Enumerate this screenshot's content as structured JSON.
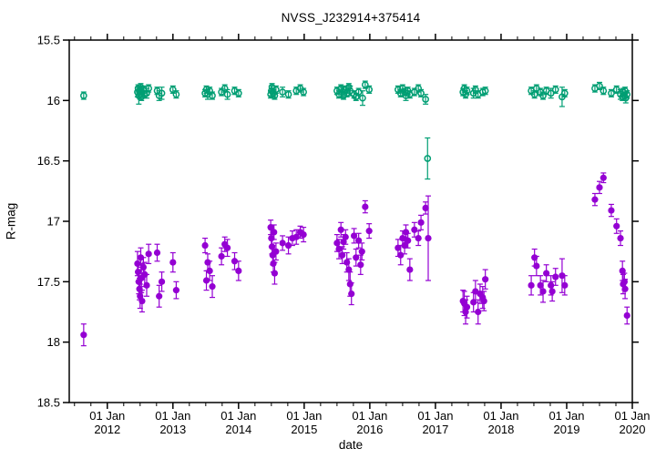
{
  "page": {
    "background": "#ffffff",
    "foreground": "#000000"
  },
  "chart_data": {
    "type": "scatter",
    "title": "NVSS_J232914+375414",
    "xlabel": "date",
    "ylabel": "R-mag",
    "grid": false,
    "legend": "none",
    "tick_style": "outward-mirrored",
    "y_axis": {
      "inverted_magnitude_scale": true,
      "ticks": [
        {
          "value": 15.5,
          "label": "15.5"
        },
        {
          "value": 16.0,
          "label": "16"
        },
        {
          "value": 16.5,
          "label": "16.5"
        },
        {
          "value": 17.0,
          "label": "17"
        },
        {
          "value": 17.5,
          "label": "17.5"
        },
        {
          "value": 18.0,
          "label": "18"
        },
        {
          "value": 18.5,
          "label": "18.5"
        }
      ]
    },
    "x_axis": {
      "min_year": 2011.42,
      "max_year": 2020.0,
      "minor_step_years": 0.25,
      "major_ticks": [
        {
          "year": 2012,
          "label": [
            "01 Jan",
            "2012"
          ]
        },
        {
          "year": 2013,
          "label": [
            "01 Jan",
            "2013"
          ]
        },
        {
          "year": 2014,
          "label": [
            "01 Jan",
            "2014"
          ]
        },
        {
          "year": 2015,
          "label": [
            "01 Jan",
            "2015"
          ]
        },
        {
          "year": 2016,
          "label": [
            "01 Jan",
            "2016"
          ]
        },
        {
          "year": 2017,
          "label": [
            "01 Jan",
            "2017"
          ]
        },
        {
          "year": 2018,
          "label": [
            "01 Jan",
            "2018"
          ]
        },
        {
          "year": 2019,
          "label": [
            "01 Jan",
            "2019"
          ]
        },
        {
          "year": 2020,
          "label": [
            "01 Jan",
            "2020"
          ]
        }
      ]
    },
    "series": [
      {
        "name": "target",
        "marker": "filled-circle",
        "color": "#9400d3",
        "points": [
          [
            2011.64,
            17.94,
            0.09
          ],
          [
            2012.46,
            17.35,
            0.1
          ],
          [
            2012.47,
            17.42,
            0.08
          ],
          [
            2012.48,
            17.5,
            0.1
          ],
          [
            2012.49,
            17.56,
            0.09
          ],
          [
            2012.5,
            17.62,
            0.1
          ],
          [
            2012.51,
            17.3,
            0.08
          ],
          [
            2012.52,
            17.47,
            0.12
          ],
          [
            2012.53,
            17.66,
            0.09
          ],
          [
            2012.55,
            17.38,
            0.08
          ],
          [
            2012.57,
            17.44,
            0.1
          ],
          [
            2012.6,
            17.53,
            0.09
          ],
          [
            2012.63,
            17.27,
            0.08
          ],
          [
            2012.76,
            17.26,
            0.07
          ],
          [
            2012.79,
            17.62,
            0.09
          ],
          [
            2012.83,
            17.5,
            0.08
          ],
          [
            2013.0,
            17.34,
            0.08
          ],
          [
            2013.05,
            17.57,
            0.07
          ],
          [
            2013.49,
            17.2,
            0.06
          ],
          [
            2013.51,
            17.49,
            0.08
          ],
          [
            2013.53,
            17.34,
            0.07
          ],
          [
            2013.56,
            17.41,
            0.08
          ],
          [
            2013.6,
            17.54,
            0.09
          ],
          [
            2013.74,
            17.29,
            0.07
          ],
          [
            2013.79,
            17.19,
            0.06
          ],
          [
            2013.83,
            17.22,
            0.07
          ],
          [
            2013.94,
            17.33,
            0.07
          ],
          [
            2014.0,
            17.41,
            0.08
          ],
          [
            2014.49,
            17.05,
            0.06
          ],
          [
            2014.5,
            17.14,
            0.07
          ],
          [
            2014.51,
            17.21,
            0.06
          ],
          [
            2014.52,
            17.28,
            0.08
          ],
          [
            2014.53,
            17.35,
            0.07
          ],
          [
            2014.54,
            17.09,
            0.06
          ],
          [
            2014.55,
            17.43,
            0.09
          ],
          [
            2014.57,
            17.25,
            0.07
          ],
          [
            2014.67,
            17.18,
            0.06
          ],
          [
            2014.76,
            17.2,
            0.07
          ],
          [
            2014.82,
            17.14,
            0.06
          ],
          [
            2014.88,
            17.13,
            0.06
          ],
          [
            2014.94,
            17.09,
            0.05
          ],
          [
            2014.99,
            17.11,
            0.06
          ],
          [
            2015.5,
            17.18,
            0.07
          ],
          [
            2015.53,
            17.23,
            0.08
          ],
          [
            2015.56,
            17.07,
            0.06
          ],
          [
            2015.58,
            17.28,
            0.07
          ],
          [
            2015.6,
            17.17,
            0.06
          ],
          [
            2015.63,
            17.13,
            0.06
          ],
          [
            2015.65,
            17.34,
            0.08
          ],
          [
            2015.68,
            17.4,
            0.09
          ],
          [
            2015.7,
            17.52,
            0.1
          ],
          [
            2015.72,
            17.6,
            0.09
          ],
          [
            2015.76,
            17.12,
            0.06
          ],
          [
            2015.79,
            17.3,
            0.07
          ],
          [
            2015.83,
            17.16,
            0.06
          ],
          [
            2015.86,
            17.36,
            0.08
          ],
          [
            2015.88,
            17.25,
            0.07
          ],
          [
            2015.93,
            16.88,
            0.05
          ],
          [
            2015.99,
            17.08,
            0.06
          ],
          [
            2016.43,
            17.22,
            0.07
          ],
          [
            2016.47,
            17.28,
            0.08
          ],
          [
            2016.5,
            17.14,
            0.06
          ],
          [
            2016.53,
            17.2,
            0.07
          ],
          [
            2016.55,
            17.09,
            0.06
          ],
          [
            2016.58,
            17.16,
            0.06
          ],
          [
            2016.61,
            17.4,
            0.09
          ],
          [
            2016.68,
            17.07,
            0.06
          ],
          [
            2016.74,
            17.14,
            0.06
          ],
          [
            2016.78,
            17.01,
            0.06
          ],
          [
            2016.85,
            16.89,
            0.05
          ],
          [
            2016.89,
            17.14,
            0.35
          ],
          [
            2017.42,
            17.66,
            0.09
          ],
          [
            2017.44,
            17.68,
            0.1
          ],
          [
            2017.46,
            17.75,
            0.1
          ],
          [
            2017.48,
            17.71,
            0.09
          ],
          [
            2017.58,
            17.67,
            0.08
          ],
          [
            2017.61,
            17.58,
            0.09
          ],
          [
            2017.65,
            17.75,
            0.1
          ],
          [
            2017.68,
            17.6,
            0.08
          ],
          [
            2017.72,
            17.63,
            0.09
          ],
          [
            2017.74,
            17.66,
            0.08
          ],
          [
            2017.76,
            17.48,
            0.08
          ],
          [
            2018.46,
            17.53,
            0.08
          ],
          [
            2018.51,
            17.3,
            0.07
          ],
          [
            2018.54,
            17.37,
            0.08
          ],
          [
            2018.6,
            17.53,
            0.08
          ],
          [
            2018.64,
            17.58,
            0.09
          ],
          [
            2018.69,
            17.43,
            0.07
          ],
          [
            2018.76,
            17.53,
            0.08
          ],
          [
            2018.78,
            17.58,
            0.08
          ],
          [
            2018.83,
            17.46,
            0.07
          ],
          [
            2018.93,
            17.45,
            0.14
          ],
          [
            2018.97,
            17.53,
            0.08
          ],
          [
            2019.43,
            16.82,
            0.05
          ],
          [
            2019.5,
            16.72,
            0.05
          ],
          [
            2019.56,
            16.64,
            0.04
          ],
          [
            2019.68,
            16.91,
            0.05
          ],
          [
            2019.76,
            17.04,
            0.06
          ],
          [
            2019.82,
            17.14,
            0.06
          ],
          [
            2019.85,
            17.41,
            0.08
          ],
          [
            2019.86,
            17.52,
            0.08
          ],
          [
            2019.88,
            17.5,
            0.07
          ],
          [
            2019.89,
            17.56,
            0.08
          ],
          [
            2019.92,
            17.78,
            0.07
          ]
        ]
      },
      {
        "name": "comparison",
        "marker": "open-circle",
        "color": "#009e73",
        "points": [
          [
            2011.64,
            15.96,
            0.03
          ],
          [
            2012.46,
            15.93,
            0.04
          ],
          [
            2012.47,
            15.9,
            0.03
          ],
          [
            2012.48,
            15.96,
            0.07
          ],
          [
            2012.49,
            15.92,
            0.03
          ],
          [
            2012.5,
            15.95,
            0.04
          ],
          [
            2012.51,
            15.89,
            0.03
          ],
          [
            2012.52,
            15.97,
            0.03
          ],
          [
            2012.53,
            15.93,
            0.04
          ],
          [
            2012.55,
            15.91,
            0.03
          ],
          [
            2012.57,
            15.95,
            0.03
          ],
          [
            2012.6,
            15.94,
            0.04
          ],
          [
            2012.63,
            15.9,
            0.03
          ],
          [
            2012.76,
            15.92,
            0.03
          ],
          [
            2012.79,
            15.96,
            0.04
          ],
          [
            2012.83,
            15.94,
            0.05
          ],
          [
            2013.0,
            15.91,
            0.03
          ],
          [
            2013.05,
            15.95,
            0.03
          ],
          [
            2013.49,
            15.94,
            0.03
          ],
          [
            2013.51,
            15.91,
            0.03
          ],
          [
            2013.53,
            15.95,
            0.04
          ],
          [
            2013.56,
            15.92,
            0.03
          ],
          [
            2013.6,
            15.96,
            0.03
          ],
          [
            2013.74,
            15.93,
            0.03
          ],
          [
            2013.79,
            15.9,
            0.03
          ],
          [
            2013.83,
            15.95,
            0.04
          ],
          [
            2013.94,
            15.92,
            0.03
          ],
          [
            2014.0,
            15.94,
            0.03
          ],
          [
            2014.49,
            15.95,
            0.03
          ],
          [
            2014.5,
            15.92,
            0.04
          ],
          [
            2014.51,
            15.89,
            0.03
          ],
          [
            2014.53,
            15.94,
            0.03
          ],
          [
            2014.55,
            15.96,
            0.03
          ],
          [
            2014.57,
            15.91,
            0.03
          ],
          [
            2014.67,
            15.93,
            0.04
          ],
          [
            2014.76,
            15.95,
            0.03
          ],
          [
            2014.88,
            15.92,
            0.03
          ],
          [
            2014.94,
            15.9,
            0.03
          ],
          [
            2014.99,
            15.93,
            0.03
          ],
          [
            2015.5,
            15.92,
            0.03
          ],
          [
            2015.53,
            15.95,
            0.03
          ],
          [
            2015.56,
            15.9,
            0.03
          ],
          [
            2015.58,
            15.93,
            0.04
          ],
          [
            2015.6,
            15.96,
            0.03
          ],
          [
            2015.63,
            15.91,
            0.03
          ],
          [
            2015.65,
            15.94,
            0.03
          ],
          [
            2015.68,
            15.89,
            0.03
          ],
          [
            2015.7,
            15.92,
            0.04
          ],
          [
            2015.76,
            15.95,
            0.03
          ],
          [
            2015.79,
            15.97,
            0.03
          ],
          [
            2015.83,
            15.93,
            0.03
          ],
          [
            2015.89,
            15.98,
            0.06
          ],
          [
            2015.93,
            15.87,
            0.03
          ],
          [
            2015.99,
            15.91,
            0.03
          ],
          [
            2016.43,
            15.91,
            0.03
          ],
          [
            2016.47,
            15.94,
            0.03
          ],
          [
            2016.5,
            15.9,
            0.03
          ],
          [
            2016.53,
            15.93,
            0.03
          ],
          [
            2016.55,
            15.96,
            0.04
          ],
          [
            2016.58,
            15.92,
            0.03
          ],
          [
            2016.61,
            15.95,
            0.03
          ],
          [
            2016.68,
            15.93,
            0.03
          ],
          [
            2016.74,
            15.9,
            0.03
          ],
          [
            2016.78,
            15.94,
            0.03
          ],
          [
            2016.85,
            15.99,
            0.04
          ],
          [
            2016.88,
            16.48,
            0.17
          ],
          [
            2017.42,
            15.93,
            0.03
          ],
          [
            2017.44,
            15.9,
            0.03
          ],
          [
            2017.46,
            15.95,
            0.03
          ],
          [
            2017.48,
            15.92,
            0.03
          ],
          [
            2017.58,
            15.94,
            0.04
          ],
          [
            2017.61,
            15.91,
            0.03
          ],
          [
            2017.65,
            15.95,
            0.03
          ],
          [
            2017.72,
            15.93,
            0.03
          ],
          [
            2017.76,
            15.92,
            0.03
          ],
          [
            2018.46,
            15.92,
            0.03
          ],
          [
            2018.51,
            15.95,
            0.03
          ],
          [
            2018.54,
            15.9,
            0.03
          ],
          [
            2018.6,
            15.93,
            0.03
          ],
          [
            2018.64,
            15.96,
            0.03
          ],
          [
            2018.69,
            15.92,
            0.03
          ],
          [
            2018.76,
            15.94,
            0.04
          ],
          [
            2018.83,
            15.91,
            0.03
          ],
          [
            2018.93,
            15.97,
            0.08
          ],
          [
            2018.97,
            15.94,
            0.03
          ],
          [
            2019.43,
            15.9,
            0.03
          ],
          [
            2019.5,
            15.88,
            0.03
          ],
          [
            2019.56,
            15.92,
            0.03
          ],
          [
            2019.68,
            15.94,
            0.03
          ],
          [
            2019.76,
            15.91,
            0.03
          ],
          [
            2019.82,
            15.95,
            0.04
          ],
          [
            2019.85,
            15.97,
            0.03
          ],
          [
            2019.86,
            15.93,
            0.03
          ],
          [
            2019.88,
            15.96,
            0.03
          ],
          [
            2019.89,
            15.92,
            0.03
          ],
          [
            2019.9,
            15.98,
            0.04
          ],
          [
            2019.92,
            15.95,
            0.03
          ]
        ]
      }
    ]
  }
}
